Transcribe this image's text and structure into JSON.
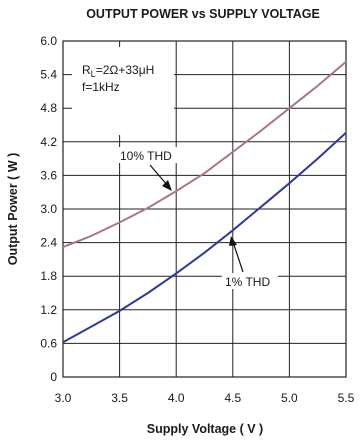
{
  "chart_data": {
    "type": "line",
    "title": "OUTPUT POWER vs SUPPLY VOLTAGE",
    "xlabel": "Supply Voltage ( V )",
    "ylabel": "Output Power ( W )",
    "xlim": [
      3.0,
      5.5
    ],
    "ylim": [
      0,
      6.0
    ],
    "xticks": [
      "3.0",
      "3.5",
      "4.0",
      "4.5",
      "5.0",
      "5.5"
    ],
    "yticks": [
      "0",
      "0.6",
      "1.2",
      "1.8",
      "2.4",
      "3.0",
      "3.6",
      "4.2",
      "4.8",
      "5.4",
      "6.0"
    ],
    "grid": true,
    "series": [
      {
        "name": "10% THD",
        "color": "#a87a7e",
        "x": [
          3.0,
          3.25,
          3.5,
          3.75,
          4.0,
          4.25,
          4.5,
          4.75,
          5.0,
          5.25,
          5.5
        ],
        "y": [
          2.32,
          2.52,
          2.76,
          3.02,
          3.32,
          3.64,
          4.02,
          4.4,
          4.8,
          5.2,
          5.63
        ]
      },
      {
        "name": "1% THD",
        "color": "#2e3a96",
        "x": [
          3.0,
          3.25,
          3.5,
          3.75,
          4.0,
          4.25,
          4.5,
          4.75,
          5.0,
          5.25,
          5.5
        ],
        "y": [
          0.62,
          0.9,
          1.18,
          1.5,
          1.85,
          2.22,
          2.62,
          3.04,
          3.46,
          3.9,
          4.36
        ]
      }
    ],
    "annotations": {
      "conditions_line1": "R",
      "conditions_sub": "L",
      "conditions_line1_rest": "=2Ω+33μH",
      "conditions_line2": "f=1kHz",
      "label_10": "10% THD",
      "label_1": "1% THD"
    }
  }
}
